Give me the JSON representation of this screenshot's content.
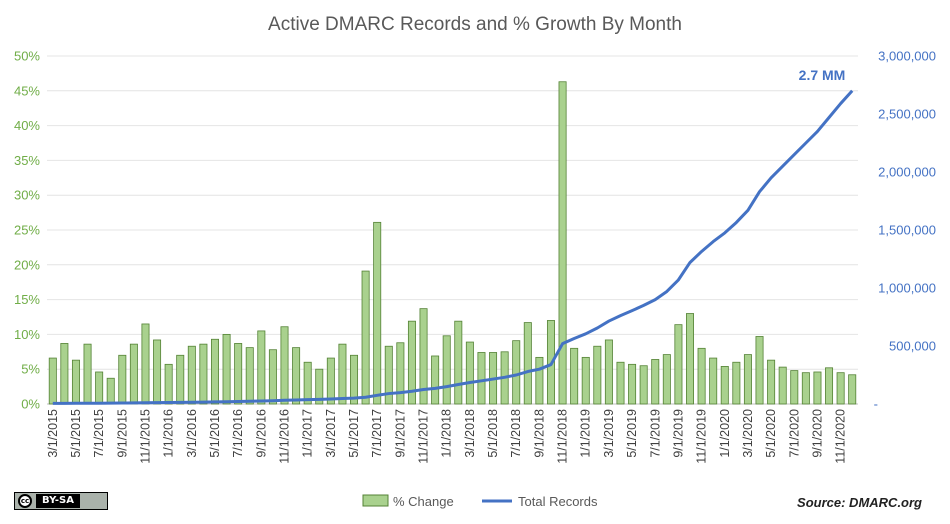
{
  "chart_data": {
    "type": "bar+line",
    "title": "Active DMARC Records and % Growth By Month",
    "categories": [
      "3/1/2015",
      "4/1/2015",
      "5/1/2015",
      "6/1/2015",
      "7/1/2015",
      "8/1/2015",
      "9/1/2015",
      "10/1/2015",
      "11/1/2015",
      "12/1/2015",
      "1/1/2016",
      "2/1/2016",
      "3/1/2016",
      "4/1/2016",
      "5/1/2016",
      "6/1/2016",
      "7/1/2016",
      "8/1/2016",
      "9/1/2016",
      "10/1/2016",
      "11/1/2016",
      "12/1/2016",
      "1/1/2017",
      "2/1/2017",
      "3/1/2017",
      "4/1/2017",
      "5/1/2017",
      "6/1/2017",
      "7/1/2017",
      "8/1/2017",
      "9/1/2017",
      "10/1/2017",
      "11/1/2017",
      "12/1/2017",
      "1/1/2018",
      "2/1/2018",
      "3/1/2018",
      "4/1/2018",
      "5/1/2018",
      "6/1/2018",
      "7/1/2018",
      "8/1/2018",
      "9/1/2018",
      "10/1/2018",
      "11/1/2018",
      "12/1/2018",
      "1/1/2019",
      "2/1/2019",
      "3/1/2019",
      "4/1/2019",
      "5/1/2019",
      "6/1/2019",
      "7/1/2019",
      "8/1/2019",
      "9/1/2019",
      "10/1/2019",
      "11/1/2019",
      "12/1/2019",
      "1/1/2020",
      "2/1/2020",
      "3/1/2020",
      "4/1/2020",
      "5/1/2020",
      "6/1/2020",
      "7/1/2020",
      "8/1/2020",
      "9/1/2020",
      "10/1/2020",
      "11/1/2020",
      "12/1/2020"
    ],
    "x_tick_labels": [
      "3/1/2015",
      "5/1/2015",
      "7/1/2015",
      "9/1/2015",
      "11/1/2015",
      "1/1/2016",
      "3/1/2016",
      "5/1/2016",
      "7/1/2016",
      "9/1/2016",
      "11/1/2016",
      "1/1/2017",
      "3/1/2017",
      "5/1/2017",
      "7/1/2017",
      "9/1/2017",
      "11/1/2017",
      "1/1/2018",
      "3/1/2018",
      "5/1/2018",
      "7/1/2018",
      "9/1/2018",
      "11/1/2018",
      "1/1/2019",
      "3/1/2019",
      "5/1/2019",
      "7/1/2019",
      "9/1/2019",
      "11/1/2019",
      "1/1/2020",
      "3/1/2020",
      "5/1/2020",
      "7/1/2020",
      "9/1/2020",
      "11/1/2020"
    ],
    "series": [
      {
        "name": "% Change",
        "type": "bar",
        "axis": "left",
        "color": "#a9d18e",
        "border": "#548235",
        "values": [
          6.6,
          8.7,
          6.3,
          8.6,
          4.6,
          3.7,
          7.0,
          8.6,
          11.5,
          9.2,
          5.7,
          7.0,
          8.3,
          8.6,
          9.3,
          10.0,
          8.7,
          8.1,
          10.5,
          7.8,
          11.1,
          8.1,
          6.0,
          5.0,
          6.6,
          8.6,
          7.0,
          19.1,
          26.1,
          8.3,
          8.8,
          11.9,
          13.7,
          6.9,
          9.8,
          11.9,
          8.9,
          7.4,
          7.4,
          7.5,
          9.1,
          11.7,
          6.7,
          12.0,
          46.3,
          8.0,
          6.7,
          8.3,
          9.2,
          6.0,
          5.7,
          5.5,
          6.4,
          7.1,
          11.4,
          13.0,
          8.0,
          6.6,
          5.4,
          6.0,
          7.1,
          9.7,
          6.3,
          5.3,
          4.8,
          4.5,
          4.6,
          5.2,
          4.5,
          4.2
        ]
      },
      {
        "name": "Total Records",
        "type": "line",
        "axis": "right",
        "color": "#4472c4",
        "values": [
          5000,
          5500,
          6000,
          6500,
          7000,
          7500,
          8500,
          9500,
          10500,
          11500,
          12500,
          13500,
          15000,
          16500,
          18000,
          19500,
          21500,
          23500,
          26000,
          28500,
          32000,
          35000,
          38000,
          40000,
          43000,
          47000,
          51000,
          58000,
          75000,
          90000,
          98000,
          110000,
          125000,
          135000,
          150000,
          168000,
          185000,
          200000,
          215000,
          230000,
          250000,
          280000,
          300000,
          340000,
          520000,
          565000,
          605000,
          655000,
          715000,
          762000,
          805000,
          850000,
          900000,
          970000,
          1070000,
          1220000,
          1315000,
          1400000,
          1475000,
          1565000,
          1670000,
          1830000,
          1950000,
          2050000,
          2150000,
          2250000,
          2350000,
          2470000,
          2590000,
          2700000
        ]
      }
    ],
    "y_left": {
      "min": 0,
      "max": 50,
      "step": 5,
      "unit": "%",
      "tick_labels": [
        "0%",
        "5%",
        "10%",
        "15%",
        "20%",
        "25%",
        "30%",
        "35%",
        "40%",
        "45%",
        "50%"
      ],
      "color": "#70ad47"
    },
    "y_right": {
      "min": 0,
      "max": 3000000,
      "step": 500000,
      "tick_labels": [
        "-",
        "500,000",
        "1,000,000",
        "1,500,000",
        "2,000,000",
        "2,500,000",
        "3,000,000"
      ],
      "color": "#4472c4"
    },
    "annotation": "2.7 MM",
    "legend_position": "bottom",
    "grid": true
  },
  "legend": {
    "bar_label": "% Change",
    "line_label": "Total Records"
  },
  "source": "Source: DMARC.org",
  "license_badge": "BY-SA"
}
